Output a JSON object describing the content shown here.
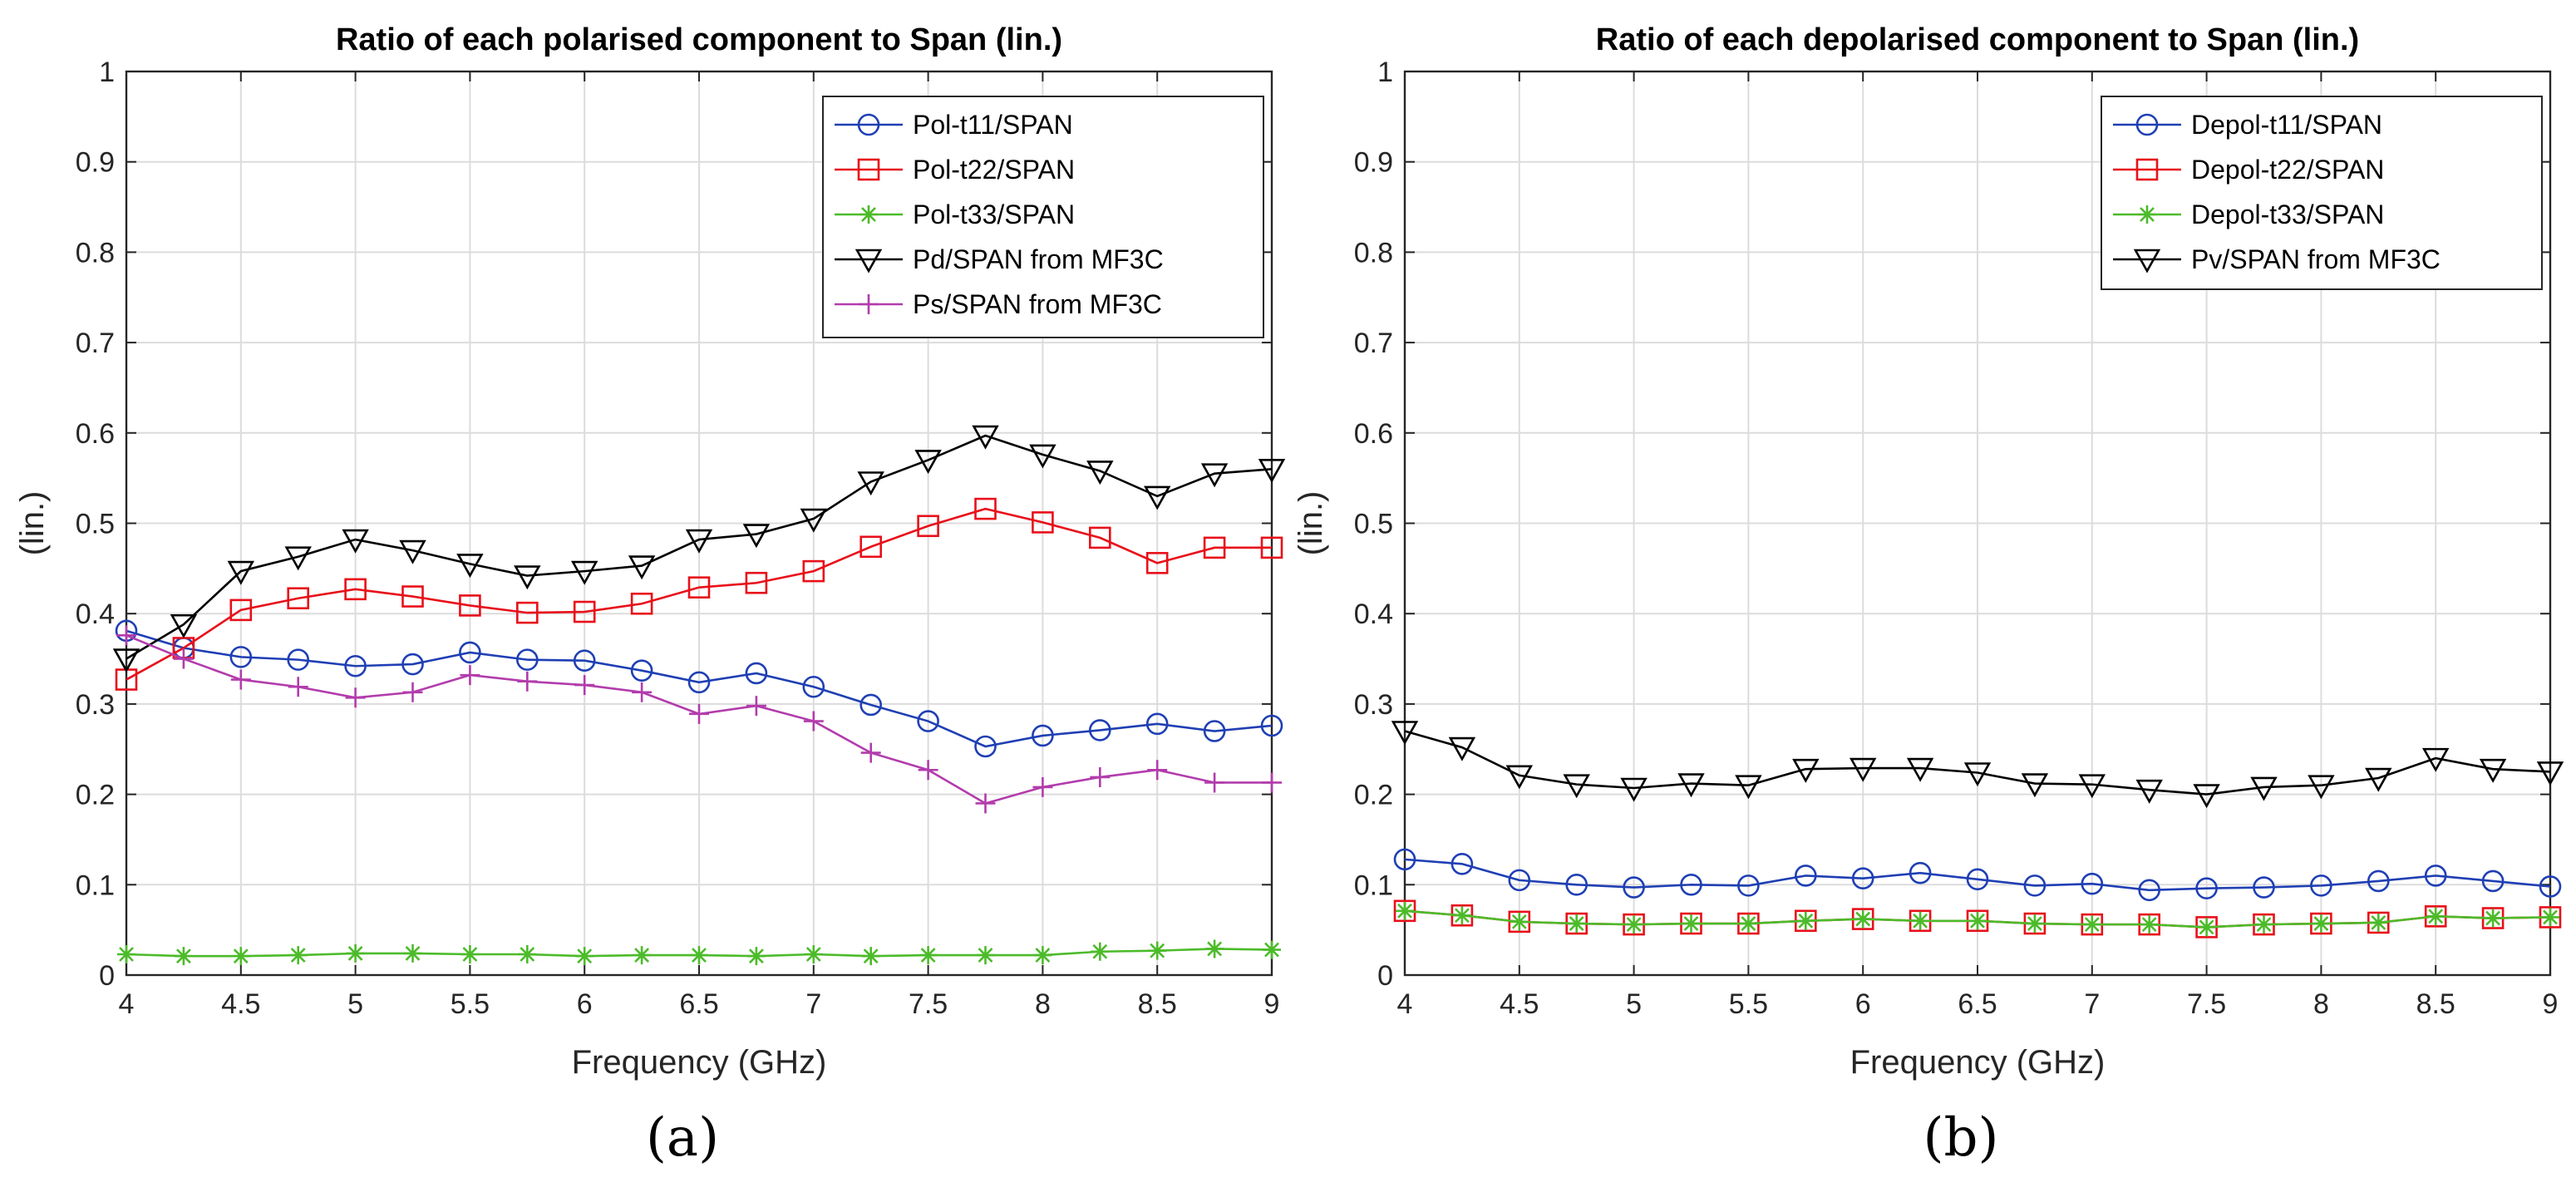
{
  "chart_data": [
    {
      "type": "line",
      "title": "Ratio of each polarised component to Span (lin.)",
      "xlabel": "Frequency (GHz)",
      "ylabel": "(lin.)",
      "panel_label": "(a)",
      "xlim": [
        4,
        9
      ],
      "ylim": [
        0,
        1
      ],
      "xticks": [
        "4",
        "4.5",
        "5",
        "5.5",
        "6",
        "6.5",
        "7",
        "7.5",
        "8",
        "8.5",
        "9"
      ],
      "yticks": [
        "0",
        "0.1",
        "0.2",
        "0.3",
        "0.4",
        "0.5",
        "0.6",
        "0.7",
        "0.8",
        "0.9",
        "1"
      ],
      "grid": true,
      "legend_position": "top-right",
      "x": [
        4,
        4.25,
        4.5,
        4.75,
        5,
        5.25,
        5.5,
        5.75,
        6,
        6.25,
        6.5,
        6.75,
        7,
        7.25,
        7.5,
        7.75,
        8,
        8.25,
        8.5,
        8.75,
        9
      ],
      "series": [
        {
          "name": "Pol-t11/SPAN",
          "color": "#1f3fb4",
          "marker": "circle",
          "values": [
            0.381,
            0.362,
            0.352,
            0.349,
            0.342,
            0.344,
            0.357,
            0.349,
            0.348,
            0.337,
            0.324,
            0.334,
            0.319,
            0.299,
            0.281,
            0.253,
            0.265,
            0.271,
            0.278,
            0.27,
            0.276
          ]
        },
        {
          "name": "Pol-t22/SPAN",
          "color": "#e8101a",
          "marker": "square",
          "values": [
            0.327,
            0.362,
            0.404,
            0.417,
            0.427,
            0.419,
            0.409,
            0.401,
            0.402,
            0.411,
            0.429,
            0.434,
            0.447,
            0.474,
            0.497,
            0.516,
            0.501,
            0.484,
            0.456,
            0.473,
            0.473
          ]
        },
        {
          "name": "Pol-t33/SPAN",
          "color": "#4cbb2a",
          "marker": "asterisk",
          "values": [
            0.023,
            0.021,
            0.021,
            0.022,
            0.024,
            0.024,
            0.023,
            0.023,
            0.021,
            0.022,
            0.022,
            0.021,
            0.023,
            0.021,
            0.022,
            0.022,
            0.022,
            0.026,
            0.027,
            0.029,
            0.028
          ]
        },
        {
          "name": "Pd/SPAN from MF3C",
          "color": "#000000",
          "marker": "triangle-down",
          "values": [
            0.35,
            0.388,
            0.447,
            0.463,
            0.482,
            0.47,
            0.455,
            0.442,
            0.447,
            0.453,
            0.482,
            0.488,
            0.505,
            0.546,
            0.57,
            0.597,
            0.576,
            0.558,
            0.53,
            0.555,
            0.56
          ]
        },
        {
          "name": "Ps/SPAN from MF3C",
          "color": "#b23cac",
          "marker": "plus",
          "values": [
            0.376,
            0.35,
            0.327,
            0.319,
            0.307,
            0.313,
            0.332,
            0.325,
            0.321,
            0.313,
            0.289,
            0.298,
            0.281,
            0.246,
            0.227,
            0.19,
            0.208,
            0.219,
            0.227,
            0.213,
            0.213
          ]
        }
      ]
    },
    {
      "type": "line",
      "title": "Ratio of each depolarised component to Span (lin.)",
      "xlabel": "Frequency (GHz)",
      "ylabel": "(lin.)",
      "panel_label": "(b)",
      "xlim": [
        4,
        9
      ],
      "ylim": [
        0,
        1
      ],
      "xticks": [
        "4",
        "4.5",
        "5",
        "5.5",
        "6",
        "6.5",
        "7",
        "7.5",
        "8",
        "8.5",
        "9"
      ],
      "yticks": [
        "0",
        "0.1",
        "0.2",
        "0.3",
        "0.4",
        "0.5",
        "0.6",
        "0.7",
        "0.8",
        "0.9",
        "1"
      ],
      "grid": true,
      "legend_position": "top-right",
      "x": [
        4,
        4.25,
        4.5,
        4.75,
        5,
        5.25,
        5.5,
        5.75,
        6,
        6.25,
        6.5,
        6.75,
        7,
        7.25,
        7.5,
        7.75,
        8,
        8.25,
        8.5,
        8.75,
        9
      ],
      "series": [
        {
          "name": "Depol-t11/SPAN",
          "color": "#1f3fb4",
          "marker": "circle",
          "values": [
            0.128,
            0.123,
            0.105,
            0.1,
            0.097,
            0.1,
            0.099,
            0.11,
            0.107,
            0.113,
            0.106,
            0.099,
            0.101,
            0.094,
            0.096,
            0.097,
            0.099,
            0.104,
            0.11,
            0.104,
            0.098
          ]
        },
        {
          "name": "Depol-t22/SPAN",
          "color": "#e8101a",
          "marker": "square",
          "values": [
            0.071,
            0.066,
            0.059,
            0.057,
            0.056,
            0.057,
            0.057,
            0.06,
            0.062,
            0.06,
            0.06,
            0.057,
            0.056,
            0.056,
            0.053,
            0.056,
            0.057,
            0.058,
            0.065,
            0.063,
            0.064
          ]
        },
        {
          "name": "Depol-t33/SPAN",
          "color": "#4cbb2a",
          "marker": "asterisk",
          "values": [
            0.071,
            0.066,
            0.059,
            0.057,
            0.056,
            0.057,
            0.057,
            0.06,
            0.062,
            0.06,
            0.06,
            0.057,
            0.056,
            0.056,
            0.053,
            0.056,
            0.057,
            0.058,
            0.065,
            0.063,
            0.064
          ]
        },
        {
          "name": "Pv/SPAN from MF3C",
          "color": "#000000",
          "marker": "triangle-down",
          "values": [
            0.27,
            0.252,
            0.221,
            0.211,
            0.207,
            0.212,
            0.21,
            0.228,
            0.229,
            0.229,
            0.224,
            0.212,
            0.211,
            0.205,
            0.2,
            0.208,
            0.21,
            0.218,
            0.24,
            0.228,
            0.225
          ]
        }
      ]
    }
  ]
}
